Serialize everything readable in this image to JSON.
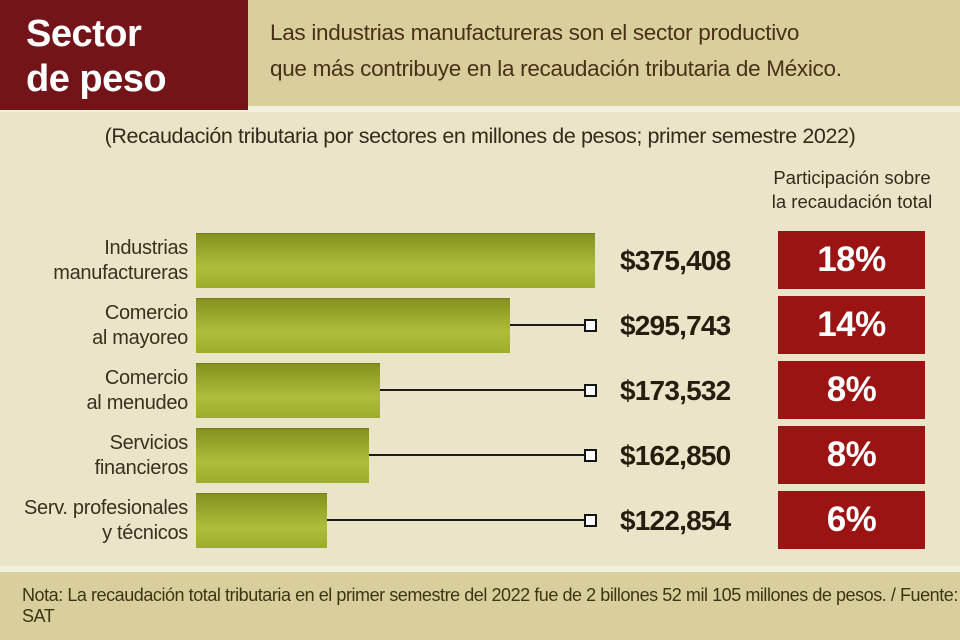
{
  "kicker": {
    "line1": "Sector",
    "line2": "de peso"
  },
  "lede": {
    "line1": "Las industrias manufactureras son el sector productivo",
    "line2": "que más contribuye en la recaudación tributaria de México."
  },
  "subtitle": "(Recaudación tributaria por sectores en millones de pesos;  primer semestre 2022)",
  "share_header": {
    "line1": "Participación sobre",
    "line2": "la recaudación total"
  },
  "rows": [
    {
      "label1": "Industrias",
      "label2": "manufactureras",
      "value": 375408,
      "value_label": "$375,408",
      "share_label": "18%"
    },
    {
      "label1": "Comercio",
      "label2": "al mayoreo",
      "value": 295743,
      "value_label": "$295,743",
      "share_label": "14%"
    },
    {
      "label1": "Comercio",
      "label2": "al menudeo",
      "value": 173532,
      "value_label": "$173,532",
      "share_label": "8%"
    },
    {
      "label1": "Servicios",
      "label2": "financieros",
      "value": 162850,
      "value_label": "$162,850",
      "share_label": "8%"
    },
    {
      "label1": "Serv. profesionales",
      "label2": "y técnicos",
      "value": 122854,
      "value_label": "$122,854",
      "share_label": "6%"
    }
  ],
  "footer_note": "Nota: La recaudación total tributaria en el primer semestre del 2022 fue de 2 billones 52 mil 105 millones de pesos. / Fuente: SAT",
  "chart_data": {
    "type": "bar",
    "orientation": "horizontal",
    "title": "Sector de peso",
    "subtitle": "Las industrias manufactureras son el sector productivo que más contribuye en la recaudación tributaria de México.",
    "caption": "(Recaudación tributaria por sectores en millones de pesos; primer semestre 2022)",
    "categories": [
      "Industrias manufactureras",
      "Comercio al mayoreo",
      "Comercio al menudeo",
      "Servicios financieros",
      "Serv. profesionales y técnicos"
    ],
    "series": [
      {
        "name": "Recaudación tributaria (millones de pesos)",
        "values": [
          375408,
          295743,
          173532,
          162850,
          122854
        ],
        "labels": [
          "$375,408",
          "$295,743",
          "$173,532",
          "$162,850",
          "$122,854"
        ]
      },
      {
        "name": "Participación sobre la recaudación total",
        "values": [
          18,
          14,
          8,
          8,
          6
        ],
        "labels": [
          "18%",
          "14%",
          "8%",
          "8%",
          "6%"
        ]
      }
    ],
    "xlim": [
      0,
      375408
    ],
    "grid": false,
    "legend_position": "none",
    "note": "Nota: La recaudación total tributaria en el primer semestre del 2022 fue de 2 billones 52 mil 105 millones de pesos. / Fuente: SAT",
    "source": "SAT"
  },
  "colors": {
    "maroon": "#731419",
    "red": "#9b1413",
    "tan": "#d9cf9c",
    "beige": "#eae4c8",
    "bar_dark": "#83901d",
    "bar_light": "#aebd3b",
    "bar_mid": "#9dac2b"
  }
}
